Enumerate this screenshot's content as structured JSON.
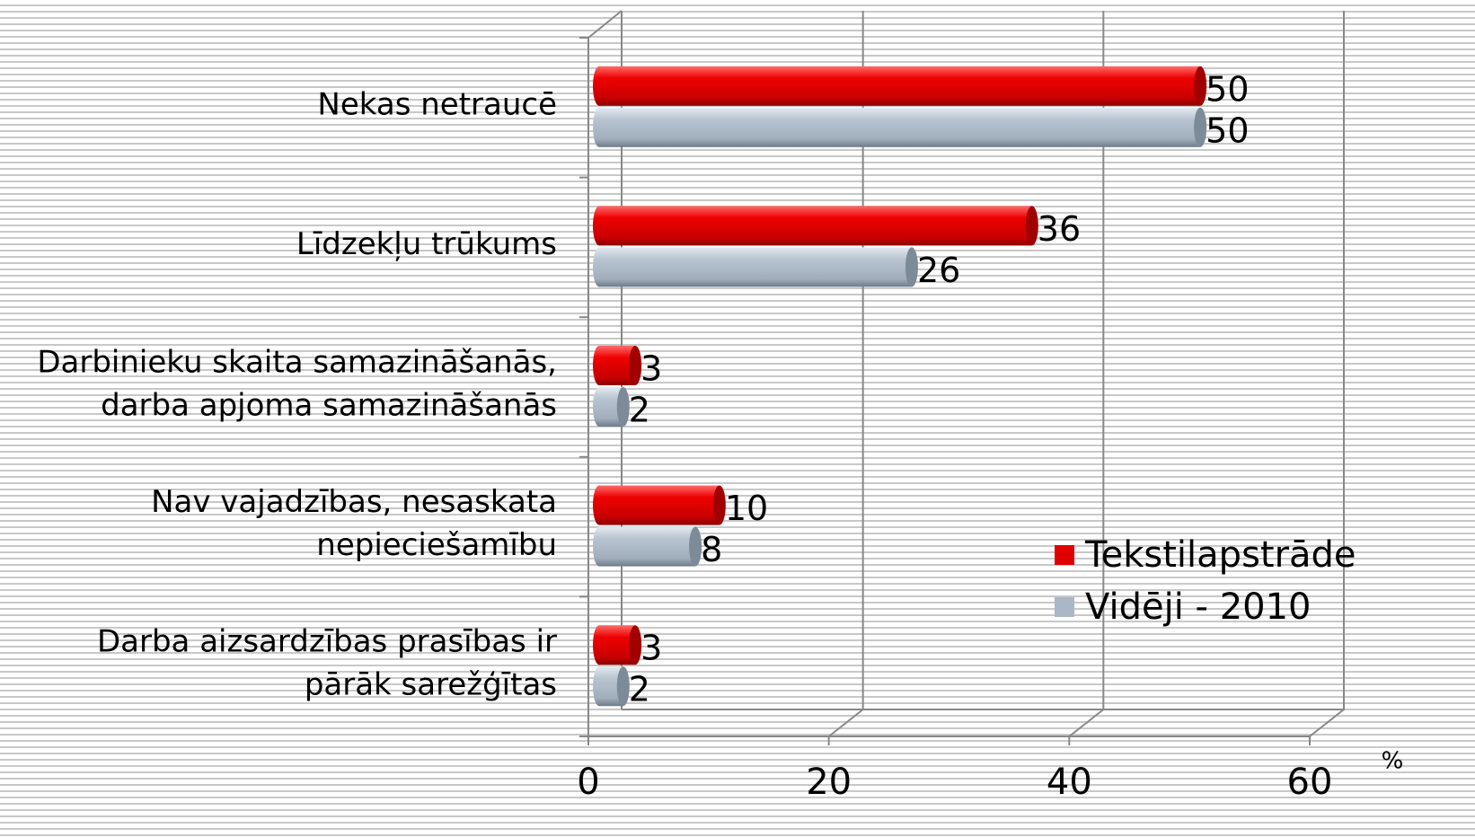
{
  "chart_data": {
    "type": "bar",
    "orientation": "horizontal",
    "categories": [
      [
        "Nekas netraucē"
      ],
      [
        "Līdzekļu trūkums"
      ],
      [
        "Darbinieku skaita samazināšanās,",
        "darba apjoma samazināšanās"
      ],
      [
        "Nav vajadzības, nesaskata",
        "nepieciešamību"
      ],
      [
        "Darba aizsardzības prasības ir",
        "pārāk sarežģītas"
      ]
    ],
    "series": [
      {
        "name": "Tekstilapstrāde",
        "color": "#e00000",
        "values": [
          50,
          36,
          3,
          10,
          3
        ]
      },
      {
        "name": "Vidēji - 2010",
        "color": "#aab8c6",
        "values": [
          50,
          26,
          2,
          8,
          2
        ]
      }
    ],
    "xlabel": "%",
    "xlim": [
      0,
      60
    ],
    "xticks": [
      0,
      20,
      40,
      60
    ],
    "grid": true,
    "legend": "lower right"
  }
}
